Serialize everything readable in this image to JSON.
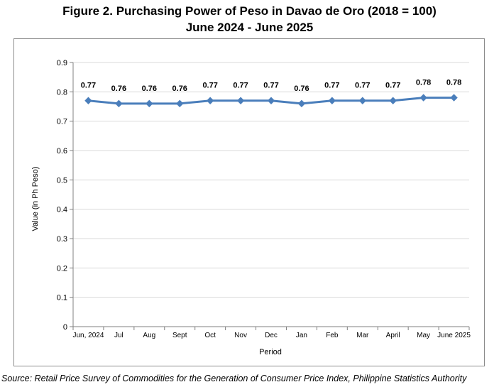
{
  "chart_data": {
    "type": "line",
    "title": "Figure 2. Purchasing Power of Peso in Davao de Oro (2018 = 100)",
    "subtitle": "June 2024 - June 2025",
    "xlabel": "Period",
    "ylabel": "Value (in Ph Peso)",
    "ylim": [
      0,
      0.9
    ],
    "yticks": [
      "0",
      "0.1",
      "0.2",
      "0.3",
      "0.4",
      "0.5",
      "0.6",
      "0.7",
      "0.8",
      "0.9"
    ],
    "grid": true,
    "legend": "none",
    "categories": [
      "Jun, 2024",
      "Jul",
      "Aug",
      "Sept",
      "Oct",
      "Nov",
      "Dec",
      "Jan",
      "Feb",
      "Mar",
      "April",
      "May",
      "June 2025"
    ],
    "series": [
      {
        "values": [
          0.77,
          0.76,
          0.76,
          0.76,
          0.77,
          0.77,
          0.77,
          0.76,
          0.77,
          0.77,
          0.77,
          0.78,
          0.78
        ],
        "labels": [
          "0.77",
          "0.76",
          "0.76",
          "0.76",
          "0.77",
          "0.77",
          "0.77",
          "0.76",
          "0.77",
          "0.77",
          "0.77",
          "0.78",
          "0.78"
        ],
        "color": "#4a7ebb"
      }
    ],
    "source": "Source: Retail Price Survey of Commodities for the Generation of Consumer Price Index, Philippine Statistics Authority"
  }
}
